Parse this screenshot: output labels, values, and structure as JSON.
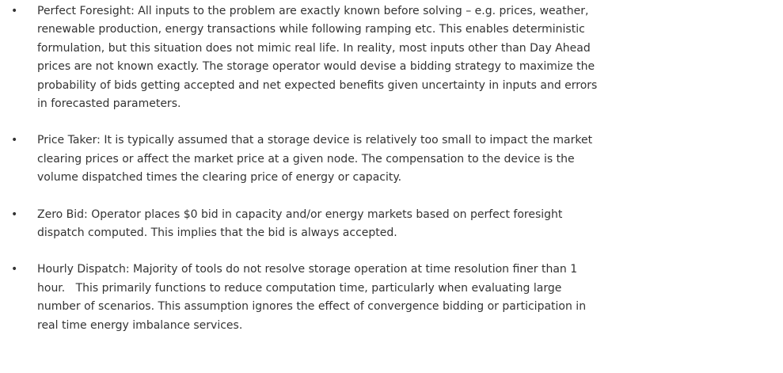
{
  "items": [
    {
      "lines": [
        "Perfect Foresight: All inputs to the problem are exactly known before solving – e.g. prices, weather,",
        "renewable production, energy transactions while following ramping etc. This enables deterministic",
        "formulation, but this situation does not mimic real life. In reality, most inputs other than Day Ahead",
        "prices are not known exactly. The storage operator would devise a bidding strategy to maximize the",
        "probability of bids getting accepted and net expected benefits given uncertainty in inputs and errors",
        "in forecasted parameters."
      ]
    },
    {
      "lines": [
        "Price Taker: It is typically assumed that a storage device is relatively too small to impact the market",
        "clearing prices or affect the market price at a given node. The compensation to the device is the",
        "volume dispatched times the clearing price of energy or capacity."
      ]
    },
    {
      "lines": [
        "Zero Bid: Operator places $0 bid in capacity and/or energy markets based on perfect foresight",
        "dispatch computed. This implies that the bid is always accepted."
      ]
    },
    {
      "lines": [
        "Hourly Dispatch: Majority of tools do not resolve storage operation at time resolution finer than 1",
        "hour.   This primarily functions to reduce computation time, particularly when evaluating large",
        "number of scenarios. This assumption ignores the effect of convergence bidding or participation in",
        "real time energy imbalance services."
      ]
    }
  ]
}
